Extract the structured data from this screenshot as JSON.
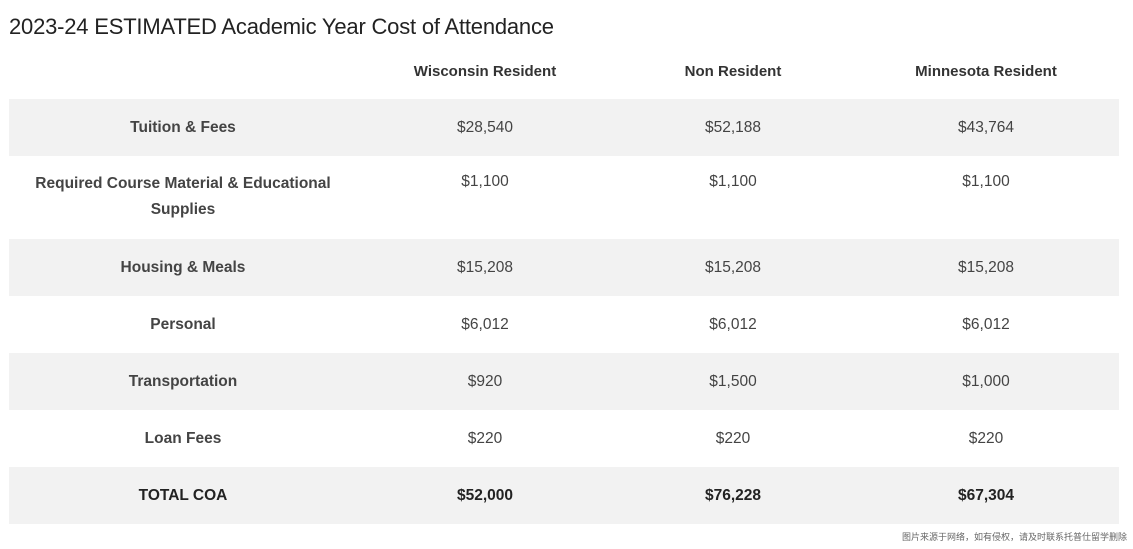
{
  "title": "2023-24 ESTIMATED Academic Year Cost of Attendance",
  "columns": [
    "",
    "Wisconsin Resident",
    "Non Resident",
    "Minnesota Resident"
  ],
  "rows": [
    {
      "label": "Tuition & Fees",
      "values": [
        "$28,540",
        "$52,188",
        "$43,764"
      ]
    },
    {
      "label": "Required Course Material & Educational Supplies",
      "values": [
        "$1,100",
        "$1,100",
        "$1,100"
      ]
    },
    {
      "label": "Housing & Meals",
      "values": [
        "$15,208",
        "$15,208",
        "$15,208"
      ]
    },
    {
      "label": "Personal",
      "values": [
        "$6,012",
        "$6,012",
        "$6,012"
      ]
    },
    {
      "label": "Transportation",
      "values": [
        "$920",
        "$1,500",
        "$1,000"
      ]
    },
    {
      "label": "Loan Fees",
      "values": [
        "$220",
        "$220",
        "$220"
      ]
    }
  ],
  "total": {
    "label": "TOTAL COA",
    "values": [
      "$52,000",
      "$76,228",
      "$67,304"
    ]
  },
  "watermark": "图片来源于网络，如有侵权，请及时联系托普仕留学删除",
  "colors": {
    "label_text": "#2a7aa0",
    "row_shade": "#f2f2f2",
    "text": "#444444"
  }
}
